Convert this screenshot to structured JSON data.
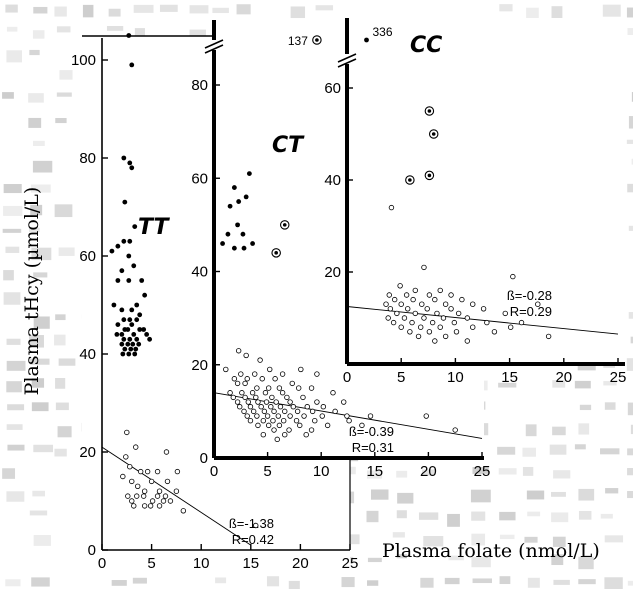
{
  "ylabel": "Plasma tHcy (µmol/L)",
  "xlabel": "Plasma folate (nmol/L)",
  "colors": {
    "bg_texture": "#b8b8b8",
    "axis": "#000000",
    "marker_fill_solid": "#000000",
    "marker_open": "#000000"
  },
  "chart_data": [
    {
      "type": "scatter",
      "panel_label": "TT",
      "xlim": [
        0,
        25
      ],
      "ylim": [
        0,
        110
      ],
      "xticks": [
        "0",
        "5",
        "10",
        "15",
        "20",
        "25"
      ],
      "yticks": [
        "0",
        "20",
        "40",
        "60",
        "80",
        "100"
      ],
      "stats": {
        "beta": "ß=-1.38",
        "r": "R=0.42"
      },
      "fit_line": [
        [
          0,
          21
        ],
        [
          15,
          1
        ]
      ],
      "points_filled": [
        [
          2.7,
          105
        ],
        [
          3.0,
          99
        ],
        [
          2.2,
          80
        ],
        [
          2.8,
          79
        ],
        [
          3.0,
          78
        ],
        [
          2.3,
          71
        ],
        [
          3.3,
          66
        ],
        [
          2.2,
          63
        ],
        [
          2.8,
          63
        ],
        [
          1.6,
          62
        ],
        [
          1.0,
          61
        ],
        [
          2.7,
          60
        ],
        [
          3.2,
          58
        ],
        [
          2.0,
          57
        ],
        [
          2.7,
          55
        ],
        [
          1.6,
          55
        ],
        [
          4.0,
          55
        ],
        [
          4.3,
          52
        ],
        [
          1.2,
          50
        ],
        [
          3.5,
          50
        ],
        [
          2.0,
          49
        ],
        [
          3.0,
          49
        ],
        [
          3.8,
          48
        ],
        [
          2.2,
          47
        ],
        [
          2.8,
          47
        ],
        [
          3.5,
          47
        ],
        [
          1.6,
          46
        ],
        [
          3.0,
          46
        ],
        [
          2.3,
          45
        ],
        [
          2.6,
          45
        ],
        [
          3.8,
          45
        ],
        [
          4.2,
          45
        ],
        [
          1.5,
          44
        ],
        [
          2.0,
          44
        ],
        [
          3.2,
          44
        ],
        [
          4.5,
          44
        ],
        [
          2.2,
          43
        ],
        [
          2.8,
          43
        ],
        [
          3.5,
          43
        ],
        [
          4.8,
          43
        ],
        [
          2.0,
          42
        ],
        [
          2.6,
          42
        ],
        [
          3.1,
          42
        ],
        [
          3.7,
          42
        ],
        [
          2.3,
          41
        ],
        [
          2.9,
          41
        ],
        [
          3.4,
          41
        ],
        [
          2.1,
          40
        ],
        [
          2.7,
          40
        ],
        [
          3.3,
          40
        ]
      ],
      "points_open": [
        [
          2.5,
          24
        ],
        [
          3.4,
          21
        ],
        [
          6.5,
          20
        ],
        [
          2.4,
          19
        ],
        [
          2.8,
          17
        ],
        [
          3.9,
          16
        ],
        [
          4.6,
          16
        ],
        [
          5.6,
          16
        ],
        [
          7.6,
          16
        ],
        [
          2.1,
          15
        ],
        [
          3.0,
          14
        ],
        [
          5.0,
          14
        ],
        [
          6.6,
          14
        ],
        [
          3.6,
          13
        ],
        [
          4.3,
          12
        ],
        [
          5.8,
          12
        ],
        [
          7.5,
          12
        ],
        [
          2.6,
          11
        ],
        [
          3.5,
          11
        ],
        [
          4.2,
          11
        ],
        [
          5.6,
          11
        ],
        [
          6.4,
          11
        ],
        [
          3.0,
          10
        ],
        [
          5.1,
          10
        ],
        [
          6.2,
          10
        ],
        [
          6.9,
          10
        ],
        [
          3.2,
          9
        ],
        [
          4.3,
          9
        ],
        [
          4.9,
          9
        ],
        [
          5.8,
          9
        ],
        [
          8.2,
          8
        ],
        [
          15.5,
          5
        ]
      ]
    },
    {
      "type": "scatter",
      "panel_label": "CT",
      "xlim": [
        0,
        25
      ],
      "ylim": [
        0,
        85
      ],
      "xticks": [
        "0",
        "5",
        "10",
        "15",
        "20",
        "25"
      ],
      "yticks": [
        "0",
        "20",
        "40",
        "60",
        "80"
      ],
      "axis_break": "y above 85",
      "outliers": [
        {
          "label": "137",
          "x": 9.6
        }
      ],
      "stats": {
        "beta": "ß=-0.39",
        "r": "R=0.31"
      },
      "fit_line": [
        [
          0,
          14
        ],
        [
          25,
          4.2
        ]
      ],
      "points_filled": [
        [
          3.3,
          61
        ],
        [
          1.9,
          58
        ],
        [
          2.3,
          55
        ],
        [
          1.5,
          54
        ],
        [
          3.0,
          56
        ],
        [
          2.2,
          50
        ],
        [
          1.3,
          48
        ],
        [
          2.7,
          48
        ],
        [
          3.6,
          46
        ],
        [
          0.8,
          46
        ],
        [
          1.9,
          45
        ],
        [
          2.8,
          45
        ]
      ],
      "points_ringed": [
        [
          6.6,
          50
        ],
        [
          5.8,
          44
        ]
      ],
      "points_open": [
        [
          2.3,
          23
        ],
        [
          3.0,
          22
        ],
        [
          4.3,
          21
        ],
        [
          1.1,
          19
        ],
        [
          5.2,
          19
        ],
        [
          8.1,
          19
        ],
        [
          2.5,
          18
        ],
        [
          3.8,
          18
        ],
        [
          6.4,
          18
        ],
        [
          9.6,
          18
        ],
        [
          1.9,
          17
        ],
        [
          3.1,
          17
        ],
        [
          4.5,
          17
        ],
        [
          5.7,
          17
        ],
        [
          7.3,
          16
        ],
        [
          2.2,
          16
        ],
        [
          2.9,
          16
        ],
        [
          4.0,
          15
        ],
        [
          5.1,
          15
        ],
        [
          6.1,
          15
        ],
        [
          7.9,
          15
        ],
        [
          9.1,
          15
        ],
        [
          1.5,
          14
        ],
        [
          2.6,
          14
        ],
        [
          3.6,
          14
        ],
        [
          4.8,
          14
        ],
        [
          6.4,
          14
        ],
        [
          11.1,
          14
        ],
        [
          1.8,
          13
        ],
        [
          2.9,
          13
        ],
        [
          3.9,
          13
        ],
        [
          5.4,
          13
        ],
        [
          6.8,
          13
        ],
        [
          8.3,
          13
        ],
        [
          2.2,
          12
        ],
        [
          3.2,
          12
        ],
        [
          4.1,
          12
        ],
        [
          4.9,
          12
        ],
        [
          5.8,
          12
        ],
        [
          7.1,
          12
        ],
        [
          9.6,
          12
        ],
        [
          12.1,
          12
        ],
        [
          2.4,
          11
        ],
        [
          3.4,
          11
        ],
        [
          4.4,
          11
        ],
        [
          5.3,
          11
        ],
        [
          6.2,
          11
        ],
        [
          7.4,
          11
        ],
        [
          8.7,
          11
        ],
        [
          10.2,
          11
        ],
        [
          2.8,
          10
        ],
        [
          3.7,
          10
        ],
        [
          4.7,
          10
        ],
        [
          5.6,
          10
        ],
        [
          6.6,
          10
        ],
        [
          7.8,
          10
        ],
        [
          9.2,
          10
        ],
        [
          11.3,
          10
        ],
        [
          3.1,
          9
        ],
        [
          4.0,
          9
        ],
        [
          5.0,
          9
        ],
        [
          6.0,
          9
        ],
        [
          7.1,
          9
        ],
        [
          8.4,
          9
        ],
        [
          10.1,
          9
        ],
        [
          12.4,
          9
        ],
        [
          14.6,
          9
        ],
        [
          19.8,
          9
        ],
        [
          3.4,
          8
        ],
        [
          4.6,
          8
        ],
        [
          5.5,
          8
        ],
        [
          6.5,
          8
        ],
        [
          7.7,
          8
        ],
        [
          9.4,
          8
        ],
        [
          12.6,
          8
        ],
        [
          4.1,
          7
        ],
        [
          5.1,
          7
        ],
        [
          6.1,
          7
        ],
        [
          8.0,
          7
        ],
        [
          10.6,
          7
        ],
        [
          13.8,
          7
        ],
        [
          5.6,
          6
        ],
        [
          7.0,
          6
        ],
        [
          9.1,
          6
        ],
        [
          22.5,
          6
        ],
        [
          4.6,
          5
        ],
        [
          6.6,
          5
        ],
        [
          8.6,
          5
        ],
        [
          5.9,
          4
        ]
      ]
    },
    {
      "type": "scatter",
      "panel_label": "CC",
      "xlim": [
        0,
        25
      ],
      "ylim": [
        0,
        65
      ],
      "xticks": [
        "0",
        "5",
        "10",
        "15",
        "20",
        "25"
      ],
      "yticks": [
        "20",
        "40",
        "60"
      ],
      "axis_break": "y above 65",
      "outliers": [
        {
          "label": "336",
          "x": 1.8
        }
      ],
      "stats": {
        "beta": "ß=-0.28",
        "r": "R=0.29"
      },
      "fit_line": [
        [
          0,
          12.5
        ],
        [
          25,
          6.5
        ]
      ],
      "points_ringed": [
        [
          7.6,
          55
        ],
        [
          8.0,
          50
        ],
        [
          5.8,
          40
        ],
        [
          7.6,
          41
        ]
      ],
      "points_open": [
        [
          4.1,
          34
        ],
        [
          7.1,
          21
        ],
        [
          15.3,
          19
        ],
        [
          4.9,
          17
        ],
        [
          6.3,
          16
        ],
        [
          8.6,
          16
        ],
        [
          3.9,
          15
        ],
        [
          5.5,
          15
        ],
        [
          7.6,
          15
        ],
        [
          9.6,
          15
        ],
        [
          4.4,
          14
        ],
        [
          6.1,
          14
        ],
        [
          8.1,
          14
        ],
        [
          10.6,
          14
        ],
        [
          3.6,
          13
        ],
        [
          5.0,
          13
        ],
        [
          6.9,
          13
        ],
        [
          9.1,
          13
        ],
        [
          11.6,
          13
        ],
        [
          17.6,
          13
        ],
        [
          4.0,
          12
        ],
        [
          5.6,
          12
        ],
        [
          7.4,
          12
        ],
        [
          9.6,
          12
        ],
        [
          12.6,
          12
        ],
        [
          4.6,
          11
        ],
        [
          6.3,
          11
        ],
        [
          8.3,
          11
        ],
        [
          10.3,
          11
        ],
        [
          14.6,
          11
        ],
        [
          3.8,
          10
        ],
        [
          5.3,
          10
        ],
        [
          7.1,
          10
        ],
        [
          8.9,
          10
        ],
        [
          11.1,
          10
        ],
        [
          4.3,
          9
        ],
        [
          6.0,
          9
        ],
        [
          7.9,
          9
        ],
        [
          9.9,
          9
        ],
        [
          12.9,
          9
        ],
        [
          16.1,
          9
        ],
        [
          5.0,
          8
        ],
        [
          6.8,
          8
        ],
        [
          8.6,
          8
        ],
        [
          11.6,
          8
        ],
        [
          15.1,
          8
        ],
        [
          5.8,
          7
        ],
        [
          7.6,
          7
        ],
        [
          10.1,
          7
        ],
        [
          13.6,
          7
        ],
        [
          6.6,
          6
        ],
        [
          9.1,
          6
        ],
        [
          18.6,
          6
        ],
        [
          8.1,
          5
        ],
        [
          11.1,
          5
        ]
      ]
    }
  ]
}
